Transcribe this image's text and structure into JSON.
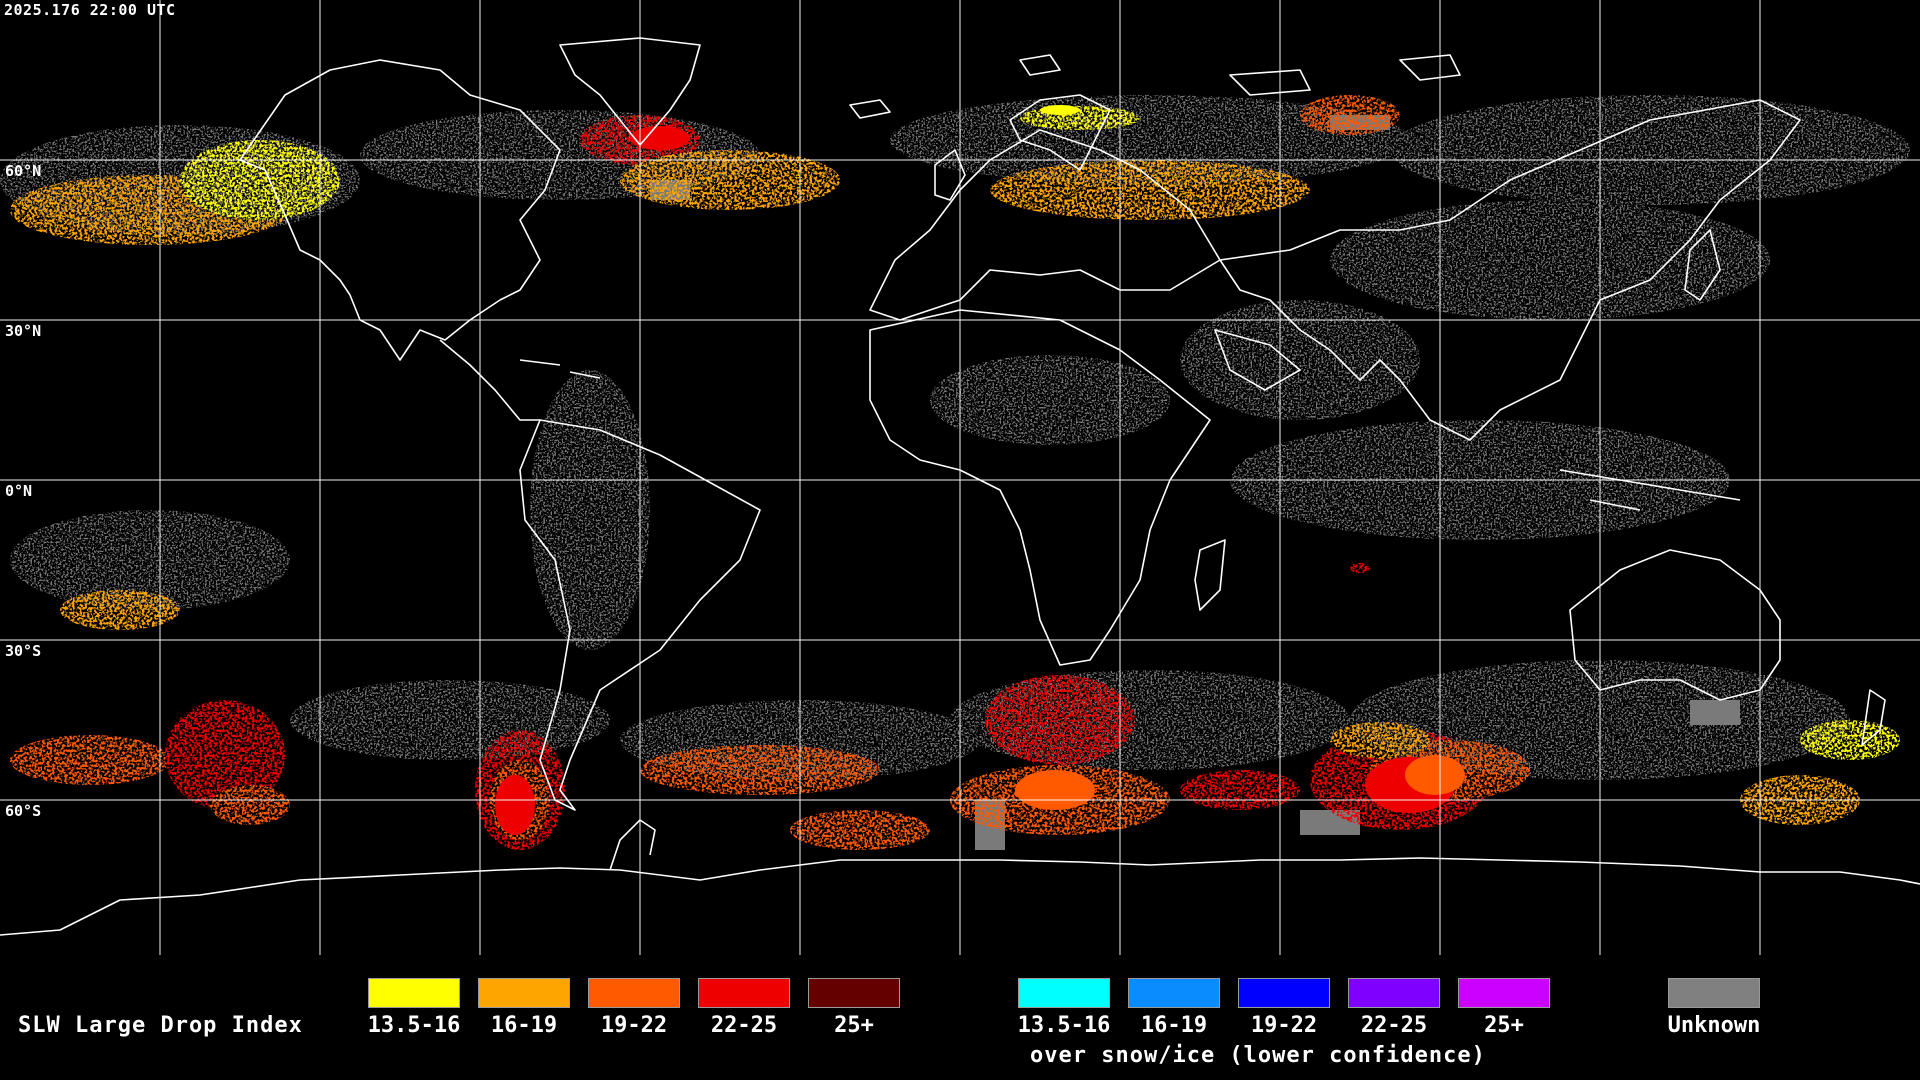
{
  "timestamp": "2025.176 22:00 UTC",
  "latitude_labels": [
    {
      "id": "60n",
      "text": "60°N"
    },
    {
      "id": "30n",
      "text": "30°N"
    },
    {
      "id": "0n",
      "text": "0°N"
    },
    {
      "id": "30s",
      "text": "30°S"
    },
    {
      "id": "60s",
      "text": "60°S"
    }
  ],
  "legend": {
    "title": "SLW Large Drop Index",
    "liquid_bins": [
      {
        "label": "13.5-16",
        "color": "#ffff00"
      },
      {
        "label": "16-19",
        "color": "#ffa500"
      },
      {
        "label": "19-22",
        "color": "#ff5a00"
      },
      {
        "label": "22-25",
        "color": "#ee0000"
      },
      {
        "label": "25+",
        "color": "#640000"
      }
    ],
    "snow_ice_bins": [
      {
        "label": "13.5-16",
        "color": "#00ffff"
      },
      {
        "label": "16-19",
        "color": "#0a8cff"
      },
      {
        "label": "19-22",
        "color": "#0000ff"
      },
      {
        "label": "22-25",
        "color": "#8000ff"
      },
      {
        "label": "25+",
        "color": "#cc00ff"
      }
    ],
    "snow_ice_note": "over snow/ice (lower confidence)",
    "unknown": {
      "label": "Unknown",
      "color": "#808080"
    }
  },
  "colors": {
    "background": "#000000",
    "grid": "#ffffff",
    "coastline": "#ffffff",
    "unknown_cloud": "#7a7a7a"
  }
}
